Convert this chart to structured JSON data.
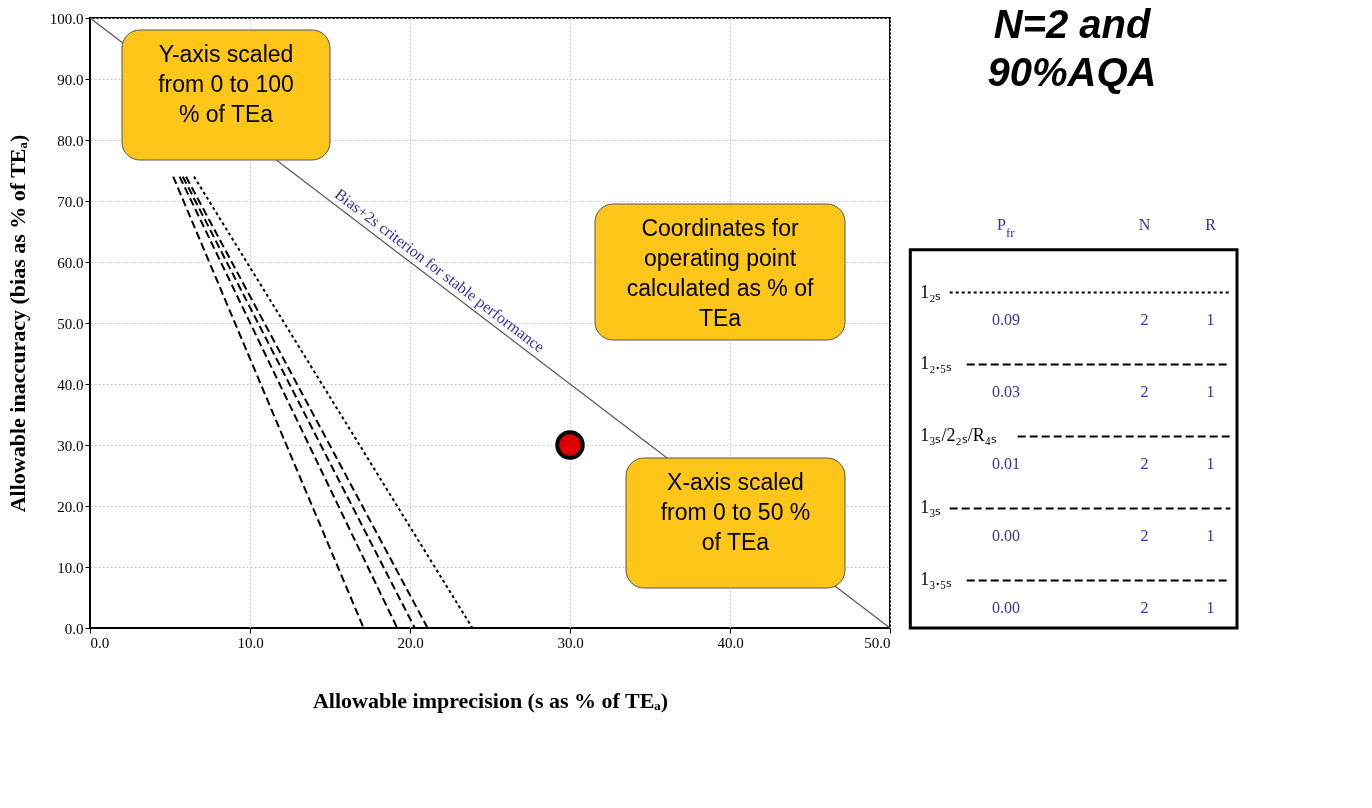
{
  "chart_data": {
    "type": "line",
    "title": "N=2 and 90%AQA",
    "xlabel": "Allowable imprecision (s as % of TEₐ)",
    "ylabel": "Allowable inaccuracy (bias as % of TEₐ)",
    "xlim": [
      0,
      50
    ],
    "ylim": [
      0,
      100
    ],
    "xticks": [
      {
        "value": 0,
        "label": "0.0"
      },
      {
        "value": 10,
        "label": "10.0"
      },
      {
        "value": 20,
        "label": "20.0"
      },
      {
        "value": 30,
        "label": "30.0"
      },
      {
        "value": 40,
        "label": "40.0"
      },
      {
        "value": 50,
        "label": "50.0"
      }
    ],
    "yticks": [
      {
        "value": 0,
        "label": "0.0"
      },
      {
        "value": 10,
        "label": "10.0"
      },
      {
        "value": 20,
        "label": "20.0"
      },
      {
        "value": 30,
        "label": "30.0"
      },
      {
        "value": 40,
        "label": "40.0"
      },
      {
        "value": 50,
        "label": "50.0"
      },
      {
        "value": 60,
        "label": "60.0"
      },
      {
        "value": 70,
        "label": "70.0"
      },
      {
        "value": 80,
        "label": "80.0"
      },
      {
        "value": 90,
        "label": "90.0"
      },
      {
        "value": 100,
        "label": "100.0"
      }
    ],
    "grid": true,
    "legend": "right",
    "series": [
      {
        "name": "Bias+2s criterion for stable performance",
        "color": "#555555",
        "line_style": "solid",
        "x": [
          0,
          50
        ],
        "values": [
          100,
          0
        ]
      },
      {
        "name": "1₂ₛ",
        "color": "#000000",
        "line_style": "dotted",
        "x": [
          6.5,
          23.9
        ],
        "values": [
          74,
          0
        ]
      },
      {
        "name": "1₂.₅ₛ",
        "color": "#000000",
        "line_style": "dashed",
        "x": [
          6.0,
          21.1
        ],
        "values": [
          74,
          0
        ]
      },
      {
        "name": "1₃ₛ/2₂ₛ/R₄ₛ",
        "color": "#000000",
        "line_style": "dashed",
        "x": [
          5.8,
          20.3
        ],
        "values": [
          74,
          0
        ]
      },
      {
        "name": "1₃ₛ",
        "color": "#000000",
        "line_style": "dashed",
        "x": [
          5.6,
          19.2
        ],
        "values": [
          74,
          0
        ]
      },
      {
        "name": "1₃.₅ₛ",
        "color": "#000000",
        "line_style": "dashed",
        "x": [
          5.2,
          17.1
        ],
        "values": [
          74,
          0
        ]
      },
      {
        "type": "scatter",
        "color": "#dd0000",
        "marker": "circle",
        "x": [
          30
        ],
        "values": [
          30
        ]
      }
    ],
    "annotations": [
      "Y-axis scaled from 0 to 100 % of TEa",
      "Coordinates for operating point calculated as % of TEa",
      "X-axis scaled from 0 to 50 % of TEa",
      "P$_{fr}$",
      "N",
      "R",
      "0.09",
      "2",
      "1",
      "0.03",
      "2",
      "1",
      "0.01",
      "2",
      "1",
      "0.00",
      "2",
      "1",
      "0.00",
      "2",
      "1"
    ]
  }
}
